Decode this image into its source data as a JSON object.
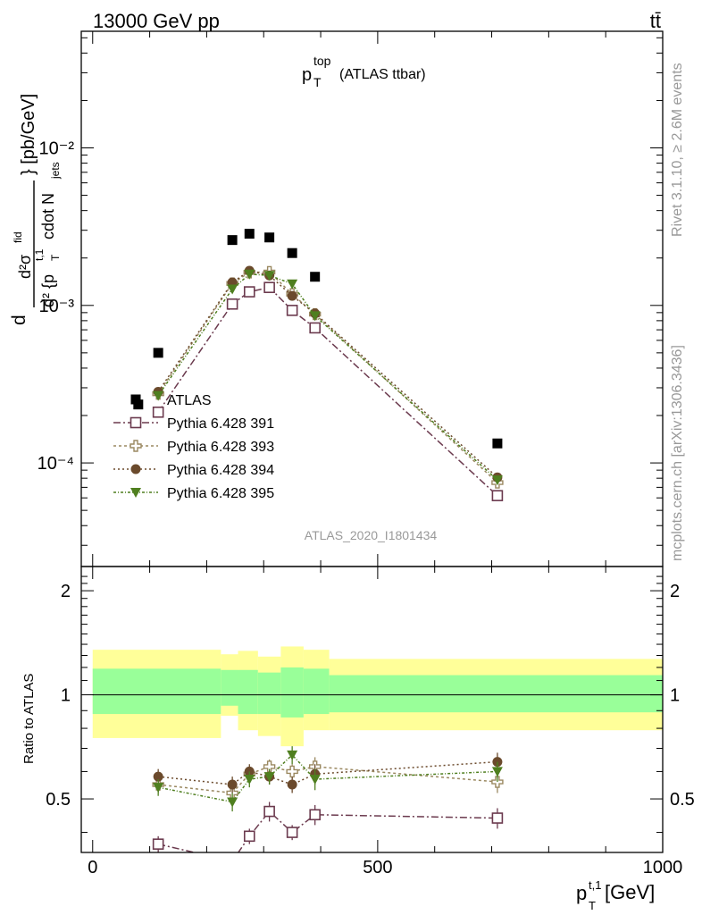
{
  "header": {
    "left": "13000 GeV pp",
    "right": "tt̄"
  },
  "side": {
    "rivet": "Rivet 3.1.10, ≥ 2.6M events",
    "mcplots": "mcplots.cern.ch [arXiv:1306.3436]"
  },
  "main_title": {
    "main": "p",
    "sup": "top",
    "sub": "T",
    "rest": "(ATLAS ttbar)"
  },
  "watermark": "ATLAS_2020_I1801434",
  "ylabel_top": {
    "line1": "d²σ",
    "line1_sup": "fid",
    "line2": "d² {p",
    "line2_sup": "t,1",
    "line2_sub": "T",
    "line2_rest": "cdot N",
    "line2_sub2": "jets",
    "units": "} [pb/GeV]"
  },
  "ylabel_bottom": "Ratio to ATLAS",
  "xlabel": {
    "main": "p",
    "sup": "t,1",
    "sub": "T",
    "rest": " [GeV]"
  },
  "legend": [
    {
      "label": "ATLAS",
      "marker": "filled-square",
      "color": "#000000"
    },
    {
      "label": "Pythia 6.428 391",
      "marker": "open-square",
      "color": "#6b3a4e"
    },
    {
      "label": "Pythia 6.428 393",
      "marker": "open-cross",
      "color": "#9a8860"
    },
    {
      "label": "Pythia 6.428 394",
      "marker": "filled-circle",
      "color": "#6b4a2c"
    },
    {
      "label": "Pythia 6.428 395",
      "marker": "filled-triangle-down",
      "color": "#4f7f1f"
    }
  ],
  "chart_data": [
    {
      "type": "scatter",
      "name": "main",
      "title": "p_T^top (ATLAS ttbar)",
      "xlabel": "p_T^{t,1} [GeV]",
      "ylabel": "d²σ^fid / d² {p_T^{t,1} cdot N_jets} [pb/GeV]",
      "xlim": [
        -20,
        1000
      ],
      "ylim": [
        2.2e-05,
        0.055
      ],
      "yscale": "log",
      "y_tick_labels": [
        "10⁻⁴",
        "10⁻³",
        "10⁻²"
      ],
      "y_tick_values": [
        0.0001,
        0.001,
        0.01
      ],
      "series": [
        {
          "name": "ATLAS",
          "x": [
            80,
            115,
            245,
            275,
            310,
            350,
            390,
            710
          ],
          "y": [
            0.000235,
            0.0005,
            0.0026,
            0.00285,
            0.0027,
            0.00215,
            0.00152,
            0.000133
          ]
        },
        {
          "name": "Pythia 6.428 391",
          "x": [
            115,
            245,
            275,
            310,
            350,
            390,
            710
          ],
          "y": [
            0.00021,
            0.00102,
            0.00122,
            0.0013,
            0.00093,
            0.00072,
            6.2e-05
          ]
        },
        {
          "name": "Pythia 6.428 393",
          "x": [
            115,
            245,
            275,
            310,
            350,
            390,
            710
          ],
          "y": [
            0.000275,
            0.00138,
            0.00162,
            0.00163,
            0.00118,
            0.00088,
            7.5e-05
          ]
        },
        {
          "name": "Pythia 6.428 394",
          "x": [
            115,
            245,
            275,
            310,
            350,
            390,
            710
          ],
          "y": [
            0.000283,
            0.0014,
            0.00166,
            0.00155,
            0.00115,
            0.00089,
            8.1e-05
          ]
        },
        {
          "name": "Pythia 6.428 395",
          "x": [
            115,
            245,
            275,
            310,
            350,
            390,
            710
          ],
          "y": [
            0.000268,
            0.00127,
            0.00158,
            0.00155,
            0.00137,
            0.00086,
            7.8e-05
          ]
        }
      ]
    },
    {
      "type": "scatter",
      "name": "ratio",
      "ylabel": "Ratio to ATLAS",
      "xlabel": "p_T^{t,1} [GeV]",
      "xlim": [
        -20,
        1000
      ],
      "ylim": [
        0.35,
        2.35
      ],
      "yscale": "log",
      "x_ticks": [
        0,
        500,
        1000
      ],
      "y_ticks": [
        0.5,
        1,
        2
      ],
      "bands": {
        "edges": [
          0,
          225,
          255,
          290,
          330,
          370,
          415,
          1000
        ],
        "yellow_lo": [
          0.75,
          0.87,
          0.79,
          0.76,
          0.71,
          0.79,
          0.79
        ],
        "yellow_hi": [
          1.35,
          1.31,
          1.34,
          1.29,
          1.38,
          1.35,
          1.27
        ],
        "green_lo": [
          0.88,
          0.93,
          0.88,
          0.88,
          0.86,
          0.88,
          0.89
        ],
        "green_hi": [
          1.19,
          1.18,
          1.18,
          1.16,
          1.2,
          1.19,
          1.14
        ]
      },
      "series": [
        {
          "name": "Pythia 6.428 391",
          "x": [
            115,
            245,
            275,
            310,
            350,
            390,
            710
          ],
          "y": [
            0.37,
            0.33,
            0.39,
            0.46,
            0.4,
            0.45,
            0.44
          ],
          "err": [
            0.02,
            0.02,
            0.02,
            0.03,
            0.02,
            0.03,
            0.03
          ]
        },
        {
          "name": "Pythia 6.428 393",
          "x": [
            115,
            245,
            275,
            310,
            350,
            390,
            710
          ],
          "y": [
            0.55,
            0.52,
            0.59,
            0.62,
            0.6,
            0.62,
            0.56
          ],
          "err": [
            0.03,
            0.03,
            0.03,
            0.03,
            0.03,
            0.04,
            0.04
          ]
        },
        {
          "name": "Pythia 6.428 394",
          "x": [
            115,
            245,
            275,
            310,
            350,
            390,
            710
          ],
          "y": [
            0.58,
            0.55,
            0.6,
            0.58,
            0.55,
            0.59,
            0.64
          ],
          "err": [
            0.03,
            0.03,
            0.03,
            0.03,
            0.03,
            0.04,
            0.04
          ]
        },
        {
          "name": "Pythia 6.428 395",
          "x": [
            115,
            245,
            275,
            310,
            350,
            390,
            710
          ],
          "y": [
            0.54,
            0.49,
            0.57,
            0.58,
            0.67,
            0.57,
            0.6
          ],
          "err": [
            0.03,
            0.03,
            0.03,
            0.03,
            0.04,
            0.04,
            0.04
          ]
        }
      ]
    }
  ]
}
